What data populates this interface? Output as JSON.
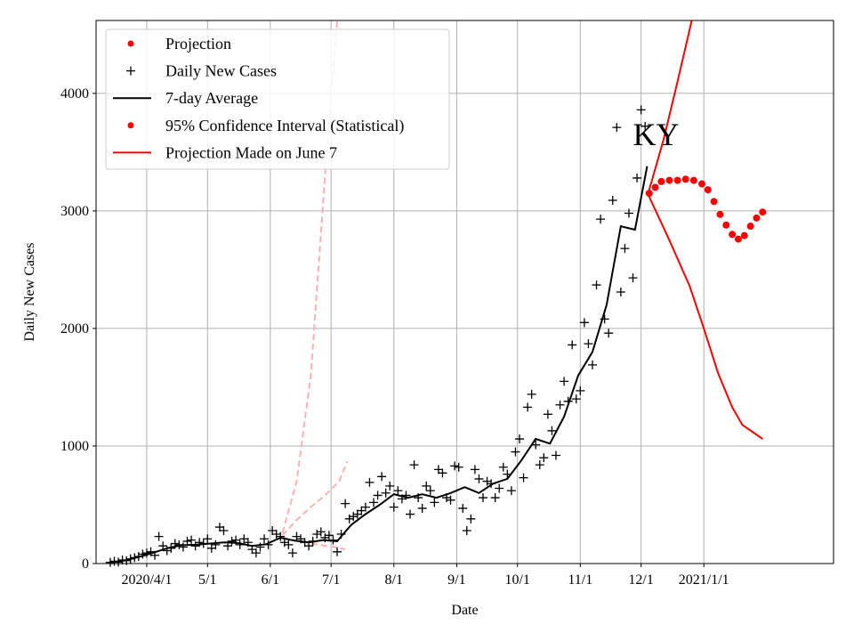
{
  "chart_data": {
    "type": "line",
    "annotation": "KY",
    "xlabel": "Date",
    "ylabel": "Daily New Cases",
    "x_ticks": [
      {
        "date": "2020-04-01",
        "label": "2020/4/1"
      },
      {
        "date": "2020-05-01",
        "label": "5/1"
      },
      {
        "date": "2020-06-01",
        "label": "6/1"
      },
      {
        "date": "2020-07-01",
        "label": "7/1"
      },
      {
        "date": "2020-08-01",
        "label": "8/1"
      },
      {
        "date": "2020-09-01",
        "label": "9/1"
      },
      {
        "date": "2020-10-01",
        "label": "10/1"
      },
      {
        "date": "2020-11-01",
        "label": "11/1"
      },
      {
        "date": "2020-12-01",
        "label": "12/1"
      },
      {
        "date": "2021-01-01",
        "label": "2021/1/1"
      }
    ],
    "y_ticks": [
      {
        "value": 0,
        "label": "0"
      },
      {
        "value": 1000,
        "label": "1000"
      },
      {
        "value": 2000,
        "label": "2000"
      },
      {
        "value": 3000,
        "label": "3000"
      },
      {
        "value": 4000,
        "label": "4000"
      }
    ],
    "xlim": [
      "2020-03-07",
      "2021-03-06"
    ],
    "ylim": [
      0,
      4620
    ],
    "grid": true,
    "legend": {
      "placement": "top-left",
      "entries": [
        {
          "label": "Projection",
          "marker": "dot",
          "color": "#ff0000"
        },
        {
          "label": "Daily New Cases",
          "marker": "plus",
          "color": "#000000"
        },
        {
          "label": "7-day Average",
          "marker": "line",
          "color": "#000000"
        },
        {
          "label": "95% Confidence Interval (Statistical)",
          "marker": "dot",
          "color": "#ff0000"
        },
        {
          "label": "Projection Made on June 7",
          "marker": "line",
          "color": "#ff0000"
        }
      ]
    },
    "series": [
      {
        "name": "Daily New Cases",
        "style": "plus",
        "color": "#000000",
        "points": [
          [
            "2020-03-14",
            10
          ],
          [
            "2020-03-16",
            20
          ],
          [
            "2020-03-18",
            12
          ],
          [
            "2020-03-20",
            30
          ],
          [
            "2020-03-22",
            25
          ],
          [
            "2020-03-24",
            40
          ],
          [
            "2020-03-26",
            50
          ],
          [
            "2020-03-28",
            60
          ],
          [
            "2020-03-30",
            80
          ],
          [
            "2020-04-01",
            90
          ],
          [
            "2020-04-03",
            100
          ],
          [
            "2020-04-05",
            70
          ],
          [
            "2020-04-07",
            230
          ],
          [
            "2020-04-09",
            150
          ],
          [
            "2020-04-11",
            110
          ],
          [
            "2020-04-13",
            130
          ],
          [
            "2020-04-15",
            170
          ],
          [
            "2020-04-17",
            160
          ],
          [
            "2020-04-19",
            140
          ],
          [
            "2020-04-21",
            190
          ],
          [
            "2020-04-23",
            200
          ],
          [
            "2020-04-25",
            150
          ],
          [
            "2020-04-27",
            180
          ],
          [
            "2020-04-29",
            170
          ],
          [
            "2020-05-01",
            210
          ],
          [
            "2020-05-03",
            130
          ],
          [
            "2020-05-05",
            160
          ],
          [
            "2020-05-07",
            310
          ],
          [
            "2020-05-09",
            280
          ],
          [
            "2020-05-11",
            150
          ],
          [
            "2020-05-13",
            190
          ],
          [
            "2020-05-15",
            200
          ],
          [
            "2020-05-17",
            160
          ],
          [
            "2020-05-19",
            210
          ],
          [
            "2020-05-21",
            180
          ],
          [
            "2020-05-23",
            120
          ],
          [
            "2020-05-25",
            90
          ],
          [
            "2020-05-27",
            140
          ],
          [
            "2020-05-29",
            210
          ],
          [
            "2020-05-31",
            160
          ],
          [
            "2020-06-02",
            280
          ],
          [
            "2020-06-04",
            250
          ],
          [
            "2020-06-06",
            230
          ],
          [
            "2020-06-08",
            180
          ],
          [
            "2020-06-10",
            160
          ],
          [
            "2020-06-12",
            90
          ],
          [
            "2020-06-14",
            230
          ],
          [
            "2020-06-16",
            210
          ],
          [
            "2020-06-18",
            180
          ],
          [
            "2020-06-20",
            150
          ],
          [
            "2020-06-22",
            190
          ],
          [
            "2020-06-24",
            250
          ],
          [
            "2020-06-26",
            270
          ],
          [
            "2020-06-28",
            220
          ],
          [
            "2020-06-30",
            240
          ],
          [
            "2020-07-02",
            200
          ],
          [
            "2020-07-04",
            100
          ],
          [
            "2020-07-06",
            250
          ],
          [
            "2020-07-08",
            510
          ],
          [
            "2020-07-10",
            380
          ],
          [
            "2020-07-12",
            400
          ],
          [
            "2020-07-14",
            420
          ],
          [
            "2020-07-16",
            450
          ],
          [
            "2020-07-18",
            480
          ],
          [
            "2020-07-20",
            690
          ],
          [
            "2020-07-22",
            520
          ],
          [
            "2020-07-24",
            580
          ],
          [
            "2020-07-26",
            740
          ],
          [
            "2020-07-28",
            600
          ],
          [
            "2020-07-30",
            660
          ],
          [
            "2020-08-01",
            480
          ],
          [
            "2020-08-03",
            620
          ],
          [
            "2020-08-05",
            550
          ],
          [
            "2020-08-07",
            580
          ],
          [
            "2020-08-09",
            420
          ],
          [
            "2020-08-11",
            840
          ],
          [
            "2020-08-13",
            560
          ],
          [
            "2020-08-15",
            470
          ],
          [
            "2020-08-17",
            660
          ],
          [
            "2020-08-19",
            620
          ],
          [
            "2020-08-21",
            520
          ],
          [
            "2020-08-23",
            800
          ],
          [
            "2020-08-25",
            770
          ],
          [
            "2020-08-27",
            560
          ],
          [
            "2020-08-29",
            540
          ],
          [
            "2020-08-31",
            830
          ],
          [
            "2020-09-02",
            820
          ],
          [
            "2020-09-04",
            470
          ],
          [
            "2020-09-06",
            280
          ],
          [
            "2020-09-08",
            380
          ],
          [
            "2020-09-10",
            800
          ],
          [
            "2020-09-12",
            720
          ],
          [
            "2020-09-14",
            560
          ],
          [
            "2020-09-16",
            700
          ],
          [
            "2020-09-18",
            680
          ],
          [
            "2020-09-20",
            560
          ],
          [
            "2020-09-22",
            640
          ],
          [
            "2020-09-24",
            820
          ],
          [
            "2020-09-26",
            760
          ],
          [
            "2020-09-28",
            620
          ],
          [
            "2020-09-30",
            950
          ],
          [
            "2020-10-02",
            1060
          ],
          [
            "2020-10-04",
            730
          ],
          [
            "2020-10-06",
            1330
          ],
          [
            "2020-10-08",
            1440
          ],
          [
            "2020-10-10",
            1010
          ],
          [
            "2020-10-12",
            840
          ],
          [
            "2020-10-14",
            900
          ],
          [
            "2020-10-16",
            1270
          ],
          [
            "2020-10-18",
            1130
          ],
          [
            "2020-10-20",
            920
          ],
          [
            "2020-10-22",
            1350
          ],
          [
            "2020-10-24",
            1550
          ],
          [
            "2020-10-26",
            1380
          ],
          [
            "2020-10-28",
            1860
          ],
          [
            "2020-10-30",
            1400
          ],
          [
            "2020-11-01",
            1470
          ],
          [
            "2020-11-03",
            2050
          ],
          [
            "2020-11-05",
            1870
          ],
          [
            "2020-11-07",
            1690
          ],
          [
            "2020-11-09",
            2370
          ],
          [
            "2020-11-11",
            2930
          ],
          [
            "2020-11-13",
            2080
          ],
          [
            "2020-11-15",
            1960
          ],
          [
            "2020-11-17",
            3090
          ],
          [
            "2020-11-19",
            3710
          ],
          [
            "2020-11-21",
            2310
          ],
          [
            "2020-11-23",
            2680
          ],
          [
            "2020-11-25",
            2980
          ],
          [
            "2020-11-27",
            2430
          ],
          [
            "2020-11-29",
            3280
          ],
          [
            "2020-12-01",
            3860
          ],
          [
            "2020-12-03",
            3720
          ]
        ]
      },
      {
        "name": "7-day Average",
        "style": "line",
        "color": "#000000",
        "points": [
          [
            "2020-03-14",
            10
          ],
          [
            "2020-03-21",
            25
          ],
          [
            "2020-03-28",
            55
          ],
          [
            "2020-04-04",
            90
          ],
          [
            "2020-04-11",
            130
          ],
          [
            "2020-04-18",
            155
          ],
          [
            "2020-04-25",
            160
          ],
          [
            "2020-05-02",
            170
          ],
          [
            "2020-05-09",
            180
          ],
          [
            "2020-05-16",
            175
          ],
          [
            "2020-05-23",
            150
          ],
          [
            "2020-05-30",
            165
          ],
          [
            "2020-06-06",
            220
          ],
          [
            "2020-06-13",
            195
          ],
          [
            "2020-06-20",
            180
          ],
          [
            "2020-06-27",
            200
          ],
          [
            "2020-07-04",
            190
          ],
          [
            "2020-07-11",
            330
          ],
          [
            "2020-07-18",
            420
          ],
          [
            "2020-07-25",
            500
          ],
          [
            "2020-08-01",
            590
          ],
          [
            "2020-08-08",
            560
          ],
          [
            "2020-08-15",
            590
          ],
          [
            "2020-08-22",
            560
          ],
          [
            "2020-08-29",
            600
          ],
          [
            "2020-09-05",
            650
          ],
          [
            "2020-09-12",
            600
          ],
          [
            "2020-09-19",
            680
          ],
          [
            "2020-09-26",
            720
          ],
          [
            "2020-10-03",
            880
          ],
          [
            "2020-10-10",
            1060
          ],
          [
            "2020-10-17",
            1020
          ],
          [
            "2020-10-24",
            1250
          ],
          [
            "2020-10-31",
            1600
          ],
          [
            "2020-11-07",
            1800
          ],
          [
            "2020-11-14",
            2200
          ],
          [
            "2020-11-21",
            2870
          ],
          [
            "2020-11-28",
            2840
          ],
          [
            "2020-12-04",
            3380
          ]
        ]
      },
      {
        "name": "Projection",
        "style": "dot",
        "color": "#ff0000",
        "points": [
          [
            "2020-12-05",
            3150
          ],
          [
            "2020-12-08",
            3200
          ],
          [
            "2020-12-11",
            3250
          ],
          [
            "2020-12-15",
            3260
          ],
          [
            "2020-12-19",
            3260
          ],
          [
            "2020-12-23",
            3270
          ],
          [
            "2020-12-27",
            3260
          ],
          [
            "2020-12-31",
            3230
          ],
          [
            "2021-01-03",
            3180
          ],
          [
            "2021-01-06",
            3080
          ],
          [
            "2021-01-09",
            2970
          ],
          [
            "2021-01-12",
            2880
          ],
          [
            "2021-01-15",
            2800
          ],
          [
            "2021-01-18",
            2760
          ],
          [
            "2021-01-21",
            2790
          ],
          [
            "2021-01-24",
            2870
          ],
          [
            "2021-01-27",
            2940
          ],
          [
            "2021-01-30",
            2990
          ]
        ]
      },
      {
        "name": "95% Confidence Interval (Statistical)",
        "style": "line",
        "color": "#ff0000",
        "bounds": {
          "upper": [
            [
              "2020-12-05",
              3180
            ],
            [
              "2020-12-12",
              3600
            ],
            [
              "2020-12-19",
              4100
            ],
            [
              "2020-12-26",
              4620
            ]
          ],
          "lower": [
            [
              "2020-12-05",
              3120
            ],
            [
              "2020-12-15",
              2750
            ],
            [
              "2020-12-25",
              2360
            ],
            [
              "2021-01-01",
              2000
            ],
            [
              "2021-01-08",
              1620
            ],
            [
              "2021-01-15",
              1330
            ],
            [
              "2021-01-20",
              1180
            ],
            [
              "2021-01-30",
              1060
            ]
          ]
        }
      },
      {
        "name": "Projection Made on June 7",
        "style": "dashed",
        "color": "#ffb0b0",
        "bounds": {
          "upper": [
            [
              "2020-06-07",
              260
            ],
            [
              "2020-06-14",
              700
            ],
            [
              "2020-06-21",
              1600
            ],
            [
              "2020-06-28",
              3300
            ],
            [
              "2020-07-04",
              4620
            ]
          ],
          "middle": [
            [
              "2020-06-07",
              240
            ],
            [
              "2020-06-14",
              370
            ],
            [
              "2020-06-21",
              480
            ],
            [
              "2020-06-28",
              580
            ],
            [
              "2020-07-05",
              700
            ],
            [
              "2020-07-09",
              870
            ]
          ],
          "lower": [
            [
              "2020-06-07",
              220
            ],
            [
              "2020-06-16",
              190
            ],
            [
              "2020-06-25",
              160
            ],
            [
              "2020-07-03",
              140
            ],
            [
              "2020-07-08",
              120
            ]
          ]
        }
      }
    ]
  }
}
